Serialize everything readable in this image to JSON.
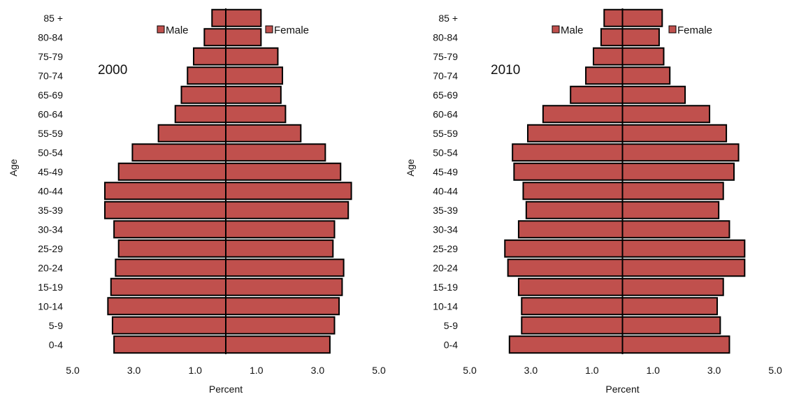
{
  "chart_data": [
    {
      "type": "bar",
      "orientation": "horizontal",
      "year_label": "2000",
      "ylabel": "Age",
      "xlabel": "Percent",
      "xtick_labels": [
        "5.0",
        "3.0",
        "1.0",
        "1.0",
        "3.0",
        "5.0"
      ],
      "categories": [
        "85 +",
        "80-84",
        "75-79",
        "70-74",
        "65-69",
        "60-64",
        "55-59",
        "50-54",
        "45-49",
        "40-44",
        "35-39",
        "30-34",
        "25-29",
        "20-24",
        "15-19",
        "10-14",
        "5-9",
        "0-4"
      ],
      "series": [
        {
          "name": "Male",
          "side": "left",
          "values": [
            0.45,
            0.7,
            1.05,
            1.25,
            1.45,
            1.65,
            2.2,
            3.05,
            3.5,
            3.95,
            3.95,
            3.65,
            3.5,
            3.6,
            3.75,
            3.85,
            3.7,
            3.65
          ]
        },
        {
          "name": "Female",
          "side": "right",
          "values": [
            1.15,
            1.15,
            1.7,
            1.85,
            1.8,
            1.95,
            2.45,
            3.25,
            3.75,
            4.1,
            4.0,
            3.55,
            3.5,
            3.85,
            3.8,
            3.7,
            3.55,
            3.4
          ]
        }
      ],
      "xlim": [
        -5,
        5
      ],
      "colors": {
        "bar": "#c0504d",
        "edge": "#000000"
      },
      "legend": "top-center"
    },
    {
      "type": "bar",
      "orientation": "horizontal",
      "year_label": "2010",
      "ylabel": "Age",
      "xlabel": "Percent",
      "xtick_labels": [
        "5.0",
        "3.0",
        "1.0",
        "1.0",
        "3.0",
        "5.0"
      ],
      "categories": [
        "85 +",
        "80-84",
        "75-79",
        "70-74",
        "65-69",
        "60-64",
        "55-59",
        "50-54",
        "45-49",
        "40-44",
        "35-39",
        "30-34",
        "25-29",
        "20-24",
        "15-19",
        "10-14",
        "5-9",
        "0-4"
      ],
      "series": [
        {
          "name": "Male",
          "side": "left",
          "values": [
            0.6,
            0.7,
            0.95,
            1.2,
            1.7,
            2.6,
            3.1,
            3.6,
            3.55,
            3.25,
            3.15,
            3.4,
            3.85,
            3.75,
            3.4,
            3.3,
            3.3,
            3.7
          ]
        },
        {
          "name": "Female",
          "side": "right",
          "values": [
            1.3,
            1.2,
            1.35,
            1.55,
            2.05,
            2.85,
            3.4,
            3.8,
            3.65,
            3.3,
            3.15,
            3.5,
            4.0,
            4.0,
            3.3,
            3.1,
            3.2,
            3.5
          ]
        }
      ],
      "xlim": [
        -5,
        5
      ],
      "colors": {
        "bar": "#c0504d",
        "edge": "#000000"
      },
      "legend": "top-center"
    }
  ]
}
